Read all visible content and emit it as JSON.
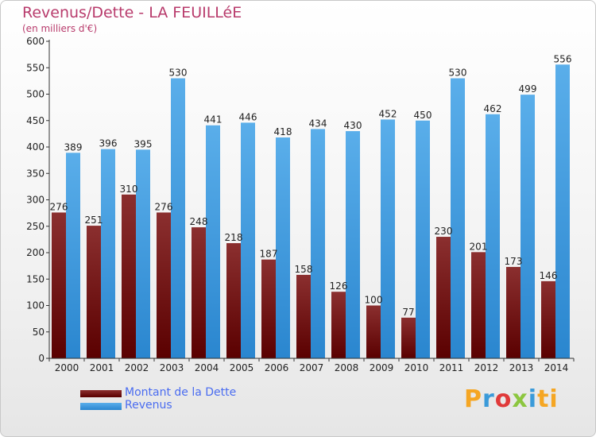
{
  "header": {
    "title": "Revenus/Dette - LA FEUILLéE",
    "subtitle": "(en milliers d'€)"
  },
  "legend": {
    "debt_label": "Montant de la Dette",
    "revenue_label": "Revenus"
  },
  "logo": {
    "text": "Proxiti"
  },
  "colors": {
    "debt_top": "#8b2f2f",
    "debt_bottom": "#5a0000",
    "revenue_top": "#5aaeea",
    "revenue_bottom": "#2a86cf"
  },
  "chart_data": {
    "type": "bar",
    "categories": [
      "2000",
      "2001",
      "2002",
      "2003",
      "2004",
      "2005",
      "2006",
      "2007",
      "2008",
      "2009",
      "2010",
      "2011",
      "2012",
      "2013",
      "2014"
    ],
    "series": [
      {
        "name": "Montant de la Dette",
        "values": [
          276,
          251,
          310,
          276,
          248,
          218,
          187,
          158,
          126,
          100,
          77,
          230,
          201,
          173,
          146
        ]
      },
      {
        "name": "Revenus",
        "values": [
          389,
          396,
          395,
          530,
          441,
          446,
          418,
          434,
          430,
          452,
          450,
          530,
          462,
          499,
          556
        ]
      }
    ],
    "ylim": [
      0,
      600
    ],
    "yticks": [
      0,
      50,
      100,
      150,
      200,
      250,
      300,
      350,
      400,
      450,
      500,
      550,
      600
    ],
    "grid": false,
    "legend_position": "bottom-left"
  }
}
